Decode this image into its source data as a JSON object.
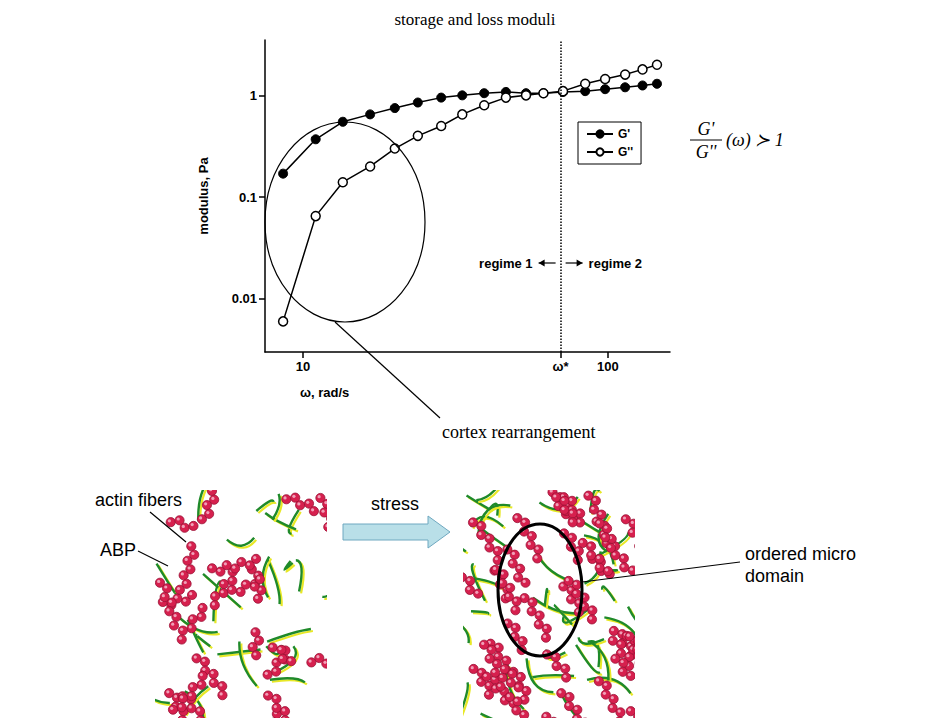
{
  "chart_data": {
    "type": "line",
    "title": "storage and loss moduli",
    "x_label": "ω, rad/s",
    "y_label": "modulus, Pa",
    "log": true,
    "grid": false,
    "legend": "right",
    "xlim": [
      7.5,
      160
    ],
    "xticks": [
      10,
      {
        "value": 70,
        "label": "ω*"
      },
      100
    ],
    "ylim": [
      0.003,
      3.5
    ],
    "yticks": [
      0.01,
      0.1,
      1
    ],
    "vline": 70,
    "x": [
      8.6,
      11.0,
      13.5,
      16.6,
      20.0,
      23.8,
      28.4,
      33.3,
      39.3,
      46.3,
      53.9,
      61.5,
      71.3,
      84.3,
      98,
      114,
      130,
      145
    ],
    "series": [
      {
        "name": "G'",
        "color": "#000000",
        "marker": "circle",
        "values": [
          0.17,
          0.37,
          0.55,
          0.65,
          0.75,
          0.85,
          0.95,
          1.0,
          1.05,
          1.08,
          1.05,
          1.05,
          1.08,
          1.1,
          1.15,
          1.2,
          1.25,
          1.3
        ]
      },
      {
        "name": "G''",
        "color": "#000000",
        "marker": "open_circle",
        "values": [
          0.006,
          0.065,
          0.14,
          0.2,
          0.3,
          0.4,
          0.5,
          0.65,
          0.8,
          0.95,
          1.0,
          1.05,
          1.1,
          1.3,
          1.45,
          1.6,
          1.8,
          2.0
        ]
      }
    ],
    "annotations": {
      "regime_left": "regime 1",
      "regime_right": "regime 2",
      "callout": "cortex rearrangement",
      "formula": {
        "numerator": "G'",
        "denominator": "G''",
        "rest": "(ω) ≻ 1"
      }
    }
  },
  "diagram": {
    "actin_label": "actin fibers",
    "abp_label": "ABP",
    "arrow_label": "stress",
    "domain_label": "ordered micro domain"
  }
}
